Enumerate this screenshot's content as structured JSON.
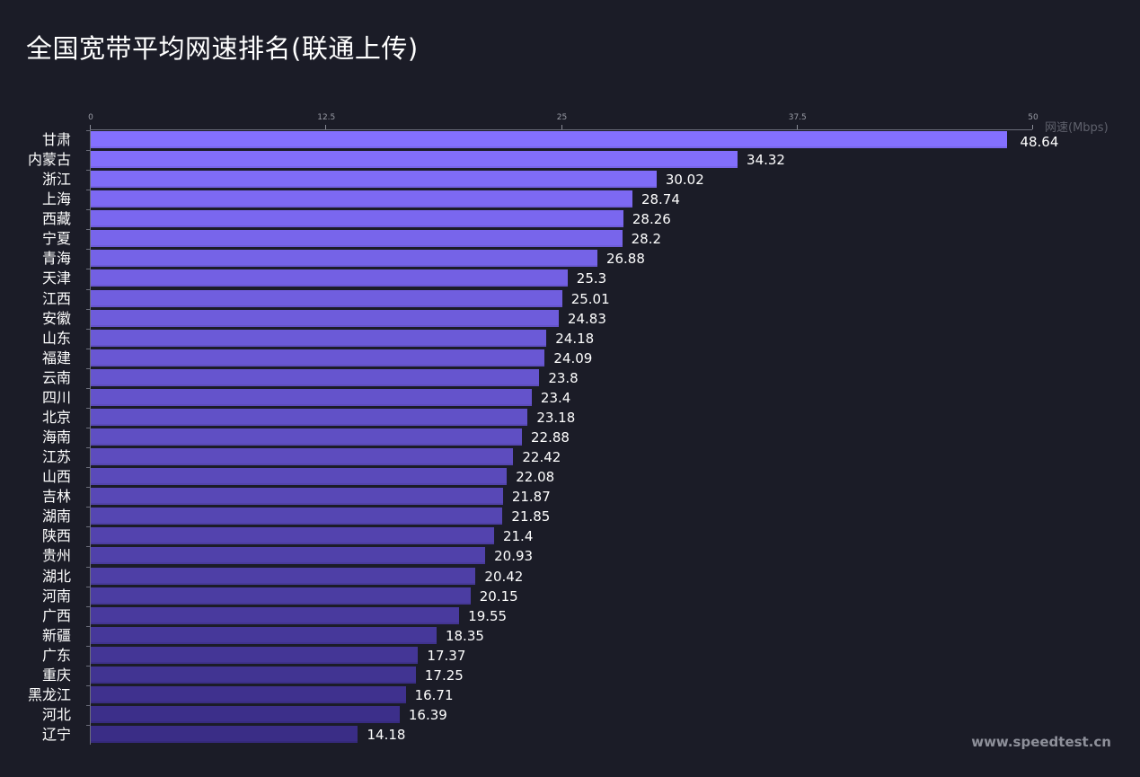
{
  "title": "全国宽带平均网速排名(联通上传)",
  "watermark": "www.speedtest.cn",
  "colors": {
    "background": "#1b1c27",
    "bar_top": "#8470ff",
    "bar_bottom": "#3a2d86",
    "axis": "#6b6d7a",
    "label": "#ffffff"
  },
  "chart_data": {
    "type": "bar",
    "orientation": "horizontal",
    "title": "全国宽带平均网速排名(联通上传)",
    "xlabel": "网速(Mbps)",
    "ylabel": "",
    "xlim": [
      0,
      50
    ],
    "x_ticks": [
      "0",
      "12.5",
      "25",
      "37.5",
      "50"
    ],
    "x_axis_position": "top",
    "grid": false,
    "legend": null,
    "categories": [
      "甘肃",
      "内蒙古",
      "浙江",
      "上海",
      "西藏",
      "宁夏",
      "青海",
      "天津",
      "江西",
      "安徽",
      "山东",
      "福建",
      "云南",
      "四川",
      "北京",
      "海南",
      "江苏",
      "山西",
      "吉林",
      "湖南",
      "陕西",
      "贵州",
      "湖北",
      "河南",
      "广西",
      "新疆",
      "广东",
      "重庆",
      "黑龙江",
      "河北",
      "辽宁"
    ],
    "values": [
      48.64,
      34.32,
      30.02,
      28.74,
      28.26,
      28.2,
      26.88,
      25.3,
      25.01,
      24.83,
      24.18,
      24.09,
      23.8,
      23.4,
      23.18,
      22.88,
      22.42,
      22.08,
      21.87,
      21.85,
      21.4,
      20.93,
      20.42,
      20.15,
      19.55,
      18.35,
      17.37,
      17.25,
      16.71,
      16.39,
      14.18
    ],
    "value_labels": [
      "48.64",
      "34.32",
      "30.02",
      "28.74",
      "28.26",
      "28.2",
      "26.88",
      "25.3",
      "25.01",
      "24.83",
      "24.18",
      "24.09",
      "23.8",
      "23.4",
      "23.18",
      "22.88",
      "22.42",
      "22.08",
      "21.87",
      "21.85",
      "21.4",
      "20.93",
      "20.42",
      "20.15",
      "19.55",
      "18.35",
      "17.37",
      "17.25",
      "16.71",
      "16.39",
      "14.18"
    ]
  }
}
